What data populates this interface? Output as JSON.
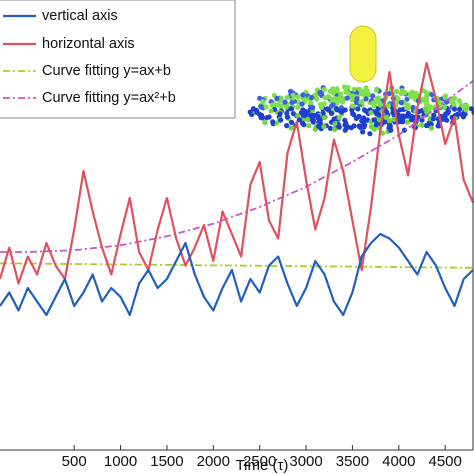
{
  "chart_data": {
    "type": "line",
    "xlabel": "Time (τ)",
    "xlim": [
      -300,
      4800
    ],
    "ylim": [
      0,
      10
    ],
    "x_ticks": [
      "500",
      "1000",
      "1500",
      "2000",
      "2500",
      "3000",
      "3500",
      "4000",
      "4500"
    ],
    "grid": false,
    "legend_position": "top-left",
    "series": [
      {
        "name": "vertical axis",
        "color": "#1f5fbf",
        "style": "solid",
        "x": [
          -300,
          -200,
          -100,
          0,
          100,
          200,
          300,
          400,
          500,
          600,
          700,
          800,
          900,
          1000,
          1100,
          1200,
          1300,
          1400,
          1500,
          1600,
          1700,
          1800,
          1900,
          2000,
          2100,
          2200,
          2300,
          2400,
          2500,
          2600,
          2700,
          2800,
          2900,
          3000,
          3100,
          3200,
          3300,
          3400,
          3500,
          3600,
          3700,
          3800,
          3900,
          4000,
          4100,
          4200,
          4300,
          4400,
          4500,
          4600,
          4700,
          4800
        ],
        "y": [
          3.2,
          3.5,
          3.1,
          3.6,
          3.3,
          3.0,
          3.4,
          3.8,
          3.2,
          3.5,
          3.9,
          3.3,
          3.6,
          3.4,
          3.0,
          3.7,
          4.0,
          3.6,
          3.8,
          4.2,
          4.6,
          3.9,
          3.4,
          3.1,
          3.6,
          4.0,
          3.3,
          3.8,
          3.5,
          4.1,
          4.3,
          3.7,
          3.2,
          3.6,
          4.2,
          3.9,
          3.3,
          3.0,
          3.5,
          4.3,
          4.6,
          4.8,
          4.7,
          4.5,
          4.2,
          3.9,
          4.4,
          4.1,
          3.6,
          3.2,
          3.8,
          4.0
        ]
      },
      {
        "name": "horizontal axis",
        "color": "#e0505e",
        "style": "solid",
        "x": [
          -300,
          -200,
          -100,
          0,
          100,
          200,
          300,
          400,
          500,
          600,
          700,
          800,
          900,
          1000,
          1100,
          1200,
          1300,
          1400,
          1500,
          1600,
          1700,
          1800,
          1900,
          2000,
          2100,
          2200,
          2300,
          2400,
          2500,
          2600,
          2700,
          2800,
          2900,
          3000,
          3100,
          3200,
          3300,
          3400,
          3500,
          3600,
          3700,
          3800,
          3900,
          4000,
          4100,
          4200,
          4300,
          4400,
          4500,
          4600,
          4700,
          4800
        ],
        "y": [
          3.8,
          4.5,
          3.7,
          4.3,
          3.9,
          4.6,
          4.1,
          3.8,
          4.9,
          6.2,
          5.3,
          4.5,
          3.9,
          4.8,
          5.6,
          4.4,
          4.0,
          4.9,
          5.6,
          4.7,
          4.1,
          4.5,
          5.0,
          4.2,
          5.3,
          4.8,
          4.3,
          5.9,
          6.4,
          5.1,
          4.7,
          6.6,
          7.3,
          6.0,
          4.9,
          5.6,
          6.9,
          6.2,
          5.1,
          4.0,
          5.4,
          7.1,
          8.4,
          7.0,
          6.1,
          7.6,
          8.6,
          7.8,
          6.8,
          7.4,
          6.0,
          5.5
        ]
      },
      {
        "name": "Curve fitting y=ax+b",
        "color": "#a8d020",
        "style": "dashdot",
        "x": [
          -300,
          4800
        ],
        "y": [
          4.15,
          4.05
        ]
      },
      {
        "name": "Curve fitting y=ax²+b",
        "color": "#cc55cc",
        "style": "dashdot",
        "x": [
          -300,
          0,
          500,
          1000,
          1500,
          2000,
          2500,
          3000,
          3500,
          4000,
          4500,
          4800
        ],
        "y": [
          4.4,
          4.4,
          4.44,
          4.55,
          4.75,
          5.03,
          5.4,
          5.85,
          6.4,
          7.0,
          7.75,
          8.2
        ]
      }
    ]
  }
}
